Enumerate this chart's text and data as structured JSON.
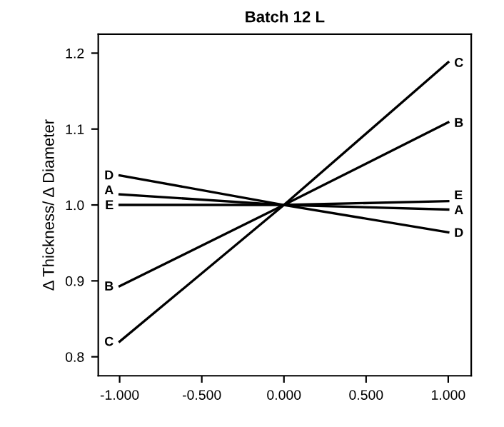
{
  "chart_data": {
    "type": "line",
    "title": "Batch 12 L",
    "ylabel": "Δ Thickness/ Δ Diameter",
    "x": [
      -1,
      0,
      1
    ],
    "series": [
      {
        "name": "A",
        "color": "#000000",
        "values": [
          1.014,
          1.0,
          0.994
        ]
      },
      {
        "name": "B",
        "color": "#000000",
        "values": [
          0.893,
          1.0,
          1.109
        ]
      },
      {
        "name": "C",
        "color": "#000000",
        "values": [
          0.82,
          1.0,
          1.188
        ]
      },
      {
        "name": "D",
        "color": "#000000",
        "values": [
          1.039,
          1.0,
          0.964
        ]
      },
      {
        "name": "E",
        "color": "#000000",
        "values": [
          1.0,
          1.0,
          1.005
        ]
      }
    ],
    "xlim": [
      -1.13,
      1.14
    ],
    "ylim": [
      0.775,
      1.225
    ],
    "xticks": [
      {
        "value": -1,
        "label": "-1.000"
      },
      {
        "value": -0.5,
        "label": "-0.500"
      },
      {
        "value": 0,
        "label": "0.000"
      },
      {
        "value": 0.5,
        "label": "0.500"
      },
      {
        "value": 1,
        "label": "1.000"
      }
    ],
    "yticks": [
      0.8,
      0.9,
      {
        "value": 1.0,
        "label": "1.0"
      },
      1.1,
      1.2
    ],
    "grid": false,
    "legend": false,
    "marker": "none",
    "line_style": "solid"
  }
}
